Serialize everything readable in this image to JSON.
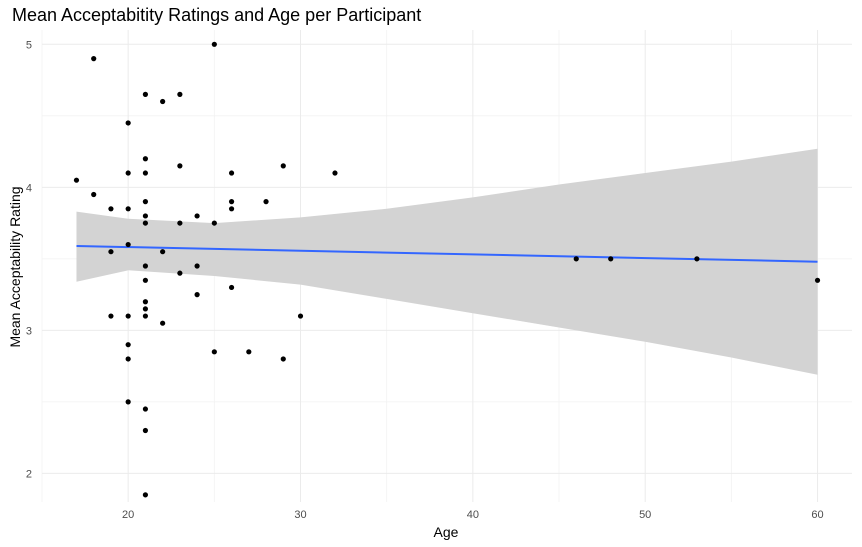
{
  "chart_data": {
    "type": "scatter",
    "title": "Mean Acceptabitity Ratings and Age per Participant",
    "xlabel": "Age",
    "ylabel": "Mean Acceptability Rating",
    "xlim": [
      15,
      62
    ],
    "ylim": [
      1.8,
      5.1
    ],
    "x_ticks": [
      20,
      30,
      40,
      50,
      60
    ],
    "y_ticks": [
      2,
      3,
      4,
      5
    ],
    "grid": true,
    "points": [
      [
        17,
        4.05
      ],
      [
        18,
        4.9
      ],
      [
        18,
        3.95
      ],
      [
        19,
        3.85
      ],
      [
        19,
        3.55
      ],
      [
        19,
        3.1
      ],
      [
        20,
        4.45
      ],
      [
        20,
        4.1
      ],
      [
        20,
        3.85
      ],
      [
        20,
        3.6
      ],
      [
        20,
        3.1
      ],
      [
        20,
        2.9
      ],
      [
        20,
        2.8
      ],
      [
        20,
        2.5
      ],
      [
        21,
        4.65
      ],
      [
        21,
        4.2
      ],
      [
        21,
        4.1
      ],
      [
        21,
        3.9
      ],
      [
        21,
        3.8
      ],
      [
        21,
        3.75
      ],
      [
        21,
        3.45
      ],
      [
        21,
        3.35
      ],
      [
        21,
        3.2
      ],
      [
        21,
        3.15
      ],
      [
        21,
        3.1
      ],
      [
        21,
        2.45
      ],
      [
        21,
        2.3
      ],
      [
        21,
        1.85
      ],
      [
        22,
        4.6
      ],
      [
        22,
        3.55
      ],
      [
        22,
        3.05
      ],
      [
        23,
        4.65
      ],
      [
        23,
        4.15
      ],
      [
        23,
        3.75
      ],
      [
        23,
        3.4
      ],
      [
        24,
        3.8
      ],
      [
        24,
        3.45
      ],
      [
        24,
        3.25
      ],
      [
        25,
        5.0
      ],
      [
        25,
        3.75
      ],
      [
        25,
        2.85
      ],
      [
        26,
        4.1
      ],
      [
        26,
        3.9
      ],
      [
        26,
        3.85
      ],
      [
        26,
        3.3
      ],
      [
        27,
        2.85
      ],
      [
        28,
        3.9
      ],
      [
        29,
        4.15
      ],
      [
        29,
        2.8
      ],
      [
        30,
        3.1
      ],
      [
        32,
        4.1
      ],
      [
        46,
        3.5
      ],
      [
        48,
        3.5
      ],
      [
        53,
        3.5
      ],
      [
        60,
        3.35
      ]
    ],
    "trend_line": {
      "type": "linear",
      "color": "#3366FF",
      "x": [
        17,
        60
      ],
      "y": [
        3.59,
        3.48
      ]
    },
    "confidence_band": {
      "color": "#d3d3d3",
      "x": [
        17,
        20,
        25,
        30,
        35,
        40,
        45,
        50,
        55,
        60
      ],
      "lower": [
        3.34,
        3.42,
        3.38,
        3.32,
        3.22,
        3.12,
        3.02,
        2.92,
        2.81,
        2.69
      ],
      "upper": [
        3.83,
        3.78,
        3.75,
        3.79,
        3.85,
        3.93,
        4.02,
        4.1,
        4.18,
        4.27
      ]
    },
    "colors": {
      "point": "#000000",
      "grid": "#ebebeb",
      "grid_minor": "#f2f2f2"
    }
  }
}
